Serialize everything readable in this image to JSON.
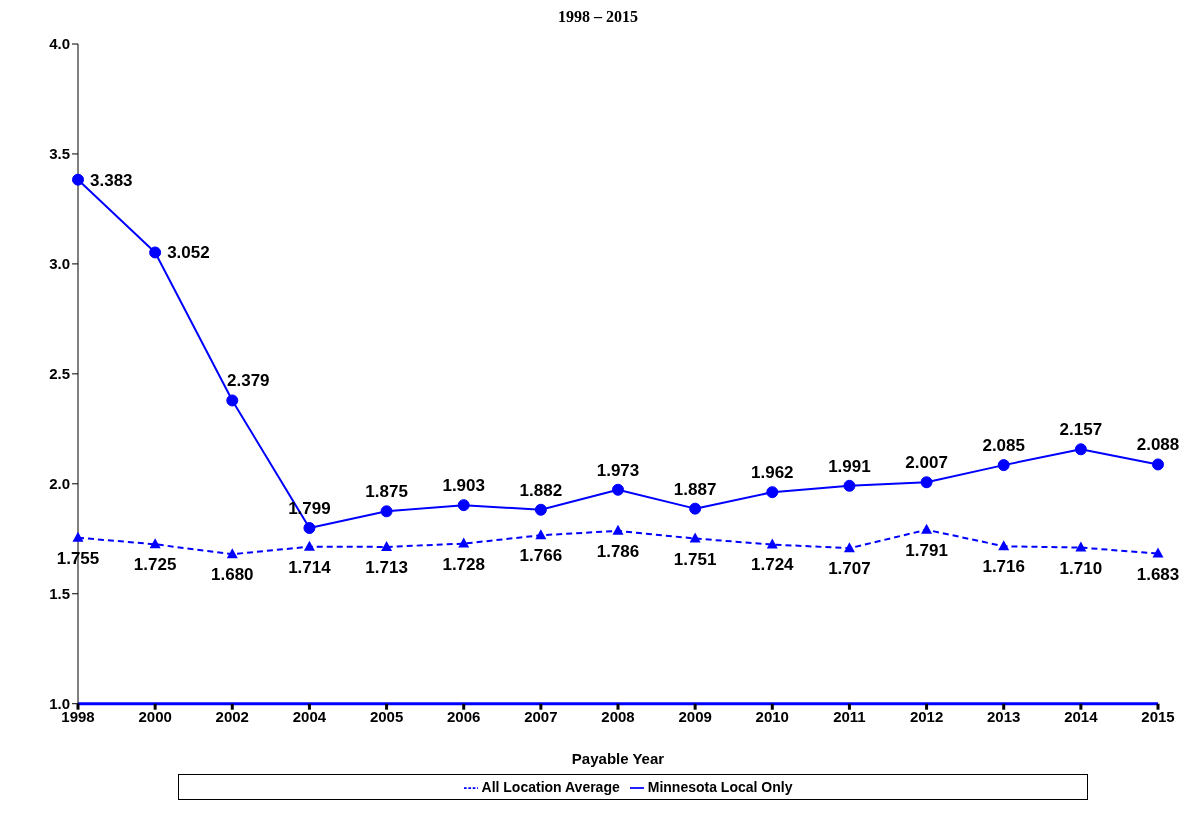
{
  "chart_data": {
    "type": "line",
    "title": "1998 – 2015",
    "xlabel": "Payable Year",
    "categories": [
      "1998",
      "2000",
      "2002",
      "2004",
      "2005",
      "2006",
      "2007",
      "2008",
      "2009",
      "2010",
      "2011",
      "2012",
      "2013",
      "2014",
      "2015"
    ],
    "series": [
      {
        "name": "All Location Average",
        "color": "#0000ff",
        "marker": "triangle",
        "line_style": "dashed",
        "values": [
          1.755,
          1.725,
          1.68,
          1.714,
          1.713,
          1.728,
          1.766,
          1.786,
          1.751,
          1.724,
          1.707,
          1.791,
          1.716,
          1.71,
          1.683
        ],
        "value_labels": [
          "1.755",
          "1.725",
          "1.680",
          "1.714",
          "1.713",
          "1.728",
          "1.766",
          "1.786",
          "1.751",
          "1.724",
          "1.707",
          "1.791",
          "1.716",
          "1.710",
          "1.683"
        ]
      },
      {
        "name": "Minnesota Local Only",
        "color": "#0000ff",
        "marker": "circle",
        "line_style": "solid",
        "values": [
          3.383,
          3.052,
          2.379,
          1.799,
          1.875,
          1.903,
          1.882,
          1.973,
          1.887,
          1.962,
          1.991,
          2.007,
          2.085,
          2.157,
          2.088
        ],
        "value_labels": [
          "3.383",
          "3.052",
          "2.379",
          "1.799",
          "1.875",
          "1.903",
          "1.882",
          "1.973",
          "1.887",
          "1.962",
          "1.991",
          "2.007",
          "2.085",
          "2.157",
          "2.088"
        ]
      }
    ],
    "ylim": [
      1.0,
      4.0
    ],
    "yticks": [
      {
        "value": 1.0,
        "label": "1.0"
      },
      {
        "value": 1.5,
        "label": "1.5"
      },
      {
        "value": 2.0,
        "label": "2.0"
      },
      {
        "value": 2.5,
        "label": "2.5"
      },
      {
        "value": 3.0,
        "label": "3.0"
      },
      {
        "value": 3.5,
        "label": "3.5"
      },
      {
        "value": 4.0,
        "label": "4.0"
      }
    ],
    "grid": false,
    "legend": "bottom"
  }
}
